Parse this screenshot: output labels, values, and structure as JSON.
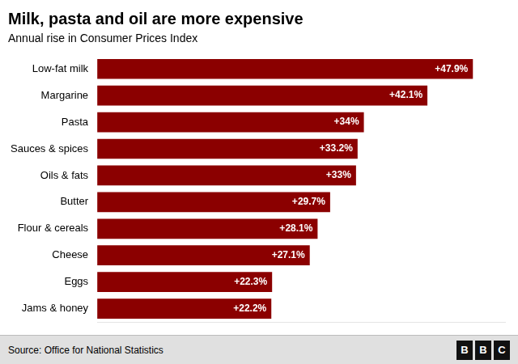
{
  "chart_data": {
    "type": "bar",
    "orientation": "horizontal",
    "title": "Milk, pasta and oil are more expensive",
    "subtitle": "Annual rise in Consumer Prices Index",
    "source": "Source: Office for National Statistics",
    "annotations": [
      "B",
      "B",
      "C"
    ],
    "categories": [
      "Jams & honey",
      "Eggs",
      "Cheese",
      "Flour & cereals",
      "Butter",
      "Oils & fats",
      "Sauces & spices",
      "Pasta",
      "Margarine",
      "Low-fat milk"
    ],
    "values": [
      22.2,
      22.3,
      27.1,
      28.1,
      29.7,
      33.0,
      33.2,
      34.0,
      42.1,
      47.9
    ],
    "value_labels": [
      "+22.2%",
      "+22.3%",
      "+27.1%",
      "+28.1%",
      "+29.7%",
      "+33%",
      "+33.2%",
      "+34%",
      "+42.1%",
      "+47.9%"
    ],
    "data_labels": true,
    "color": "#8B0000",
    "xlim": [
      0,
      52
    ],
    "grid": false,
    "tick_labels": "y"
  }
}
